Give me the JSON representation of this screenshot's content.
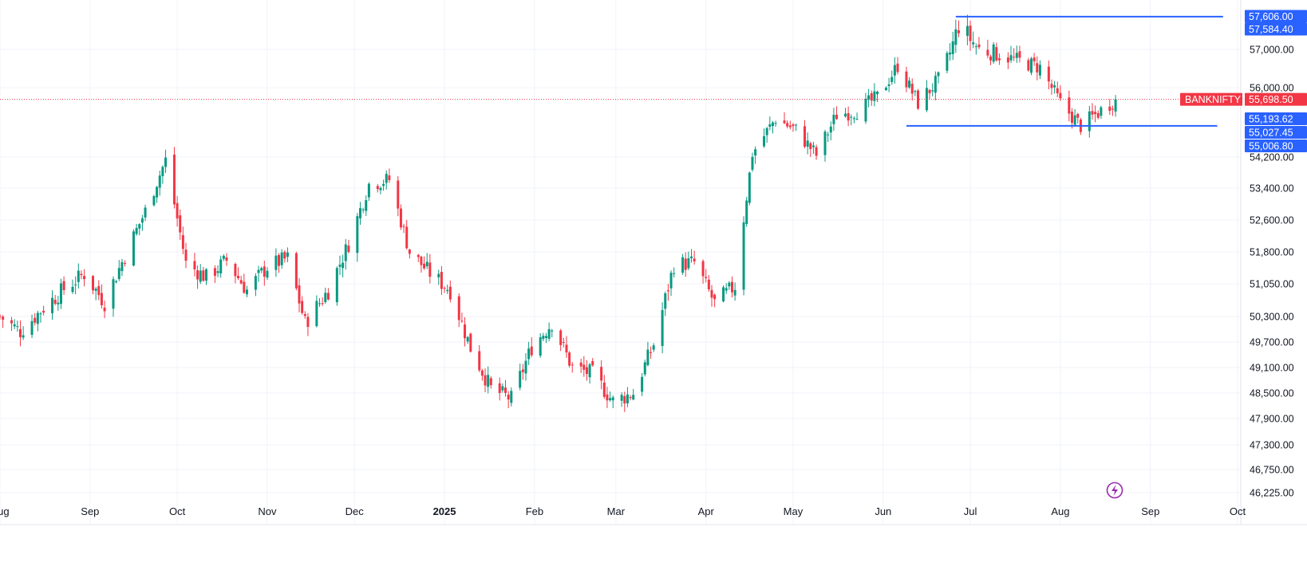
{
  "chart_data": {
    "type": "candlestick",
    "symbol": "BANKNIFTY",
    "title": "",
    "xlabel": "",
    "ylabel": "",
    "x_months": [
      {
        "label": "Aug",
        "bold": false
      },
      {
        "label": "Sep",
        "bold": false
      },
      {
        "label": "Oct",
        "bold": false
      },
      {
        "label": "Nov",
        "bold": false
      },
      {
        "label": "Dec",
        "bold": false
      },
      {
        "label": "2025",
        "bold": true
      },
      {
        "label": "Feb",
        "bold": false
      },
      {
        "label": "Mar",
        "bold": false
      },
      {
        "label": "Apr",
        "bold": false
      },
      {
        "label": "May",
        "bold": false
      },
      {
        "label": "Jun",
        "bold": false
      },
      {
        "label": "Jul",
        "bold": false
      },
      {
        "label": "Aug",
        "bold": false
      },
      {
        "label": "Sep",
        "bold": false
      },
      {
        "label": "Oct",
        "bold": false
      }
    ],
    "y_ticks": [
      {
        "value": 57000,
        "label": "57,000.00"
      },
      {
        "value": 56000,
        "label": "56,000.00"
      },
      {
        "value": 54200,
        "label": "54,200.00"
      },
      {
        "value": 53400,
        "label": "53,400.00"
      },
      {
        "value": 52600,
        "label": "52,600.00"
      },
      {
        "value": 51800,
        "label": "51,800.00"
      },
      {
        "value": 51050,
        "label": "51,050.00"
      },
      {
        "value": 50300,
        "label": "50,300.00"
      },
      {
        "value": 49700,
        "label": "49,700.00"
      },
      {
        "value": 49100,
        "label": "49,100.00"
      },
      {
        "value": 48500,
        "label": "48,500.00"
      },
      {
        "value": 47900,
        "label": "47,900.00"
      },
      {
        "value": 47300,
        "label": "47,300.00"
      },
      {
        "value": 46750,
        "label": "46,750.00"
      },
      {
        "value": 46225,
        "label": "46,225.00"
      }
    ],
    "last_price": {
      "symbol_label": "BANKNIFTY",
      "value": 55698.5,
      "label": "55,698.50",
      "color": "#f23645"
    },
    "price_labels": [
      {
        "value": 57606.0,
        "label": "57,606.00",
        "color": "#2962ff"
      },
      {
        "value": 57584.4,
        "label": "57,584.40",
        "color": "#2962ff"
      },
      {
        "value": 55193.62,
        "label": "55,193.62",
        "color": "#2962ff"
      },
      {
        "value": 55027.45,
        "label": "55,027.45",
        "color": "#2962ff"
      },
      {
        "value": 55006.8,
        "label": "55,006.80",
        "color": "#2962ff"
      }
    ],
    "trend_lines": [
      {
        "name": "resistance-line",
        "start_date": "2025-06-26",
        "end_date": "2025-09-26",
        "value": 57600
      },
      {
        "name": "support-line",
        "start_date": "2025-06-09",
        "end_date": "2025-09-24",
        "value": 55010
      }
    ],
    "price_series": [
      [
        "2024-08-01",
        50300
      ],
      [
        "2024-08-08",
        49950
      ],
      [
        "2024-08-16",
        50500
      ],
      [
        "2024-08-23",
        50930
      ],
      [
        "2024-08-30",
        51280
      ],
      [
        "2024-09-06",
        50620
      ],
      [
        "2024-09-13",
        51720
      ],
      [
        "2024-09-20",
        52820
      ],
      [
        "2024-09-27",
        54120
      ],
      [
        "2024-10-04",
        51530
      ],
      [
        "2024-10-11",
        51200
      ],
      [
        "2024-10-18",
        51600
      ],
      [
        "2024-10-25",
        50900
      ],
      [
        "2024-11-01",
        51450
      ],
      [
        "2024-11-08",
        51650
      ],
      [
        "2024-11-14",
        50150
      ],
      [
        "2024-11-22",
        50900
      ],
      [
        "2024-11-29",
        52000
      ],
      [
        "2024-12-06",
        53500
      ],
      [
        "2024-12-13",
        53620
      ],
      [
        "2024-12-20",
        51800
      ],
      [
        "2024-12-27",
        51300
      ],
      [
        "2025-01-03",
        50900
      ],
      [
        "2025-01-10",
        49560
      ],
      [
        "2025-01-17",
        48600
      ],
      [
        "2025-01-24",
        48360
      ],
      [
        "2025-01-31",
        49580
      ],
      [
        "2025-02-07",
        50150
      ],
      [
        "2025-02-14",
        49100
      ],
      [
        "2025-02-21",
        48950
      ],
      [
        "2025-02-28",
        48300
      ],
      [
        "2025-03-07",
        48500
      ],
      [
        "2025-03-14",
        49650
      ],
      [
        "2025-03-21",
        51500
      ],
      [
        "2025-03-28",
        51550
      ],
      [
        "2025-04-04",
        50600
      ],
      [
        "2025-04-11",
        51000
      ],
      [
        "2025-04-17",
        54300
      ],
      [
        "2025-04-25",
        55200
      ],
      [
        "2025-05-02",
        54900
      ],
      [
        "2025-05-09",
        54250
      ],
      [
        "2025-05-16",
        55300
      ],
      [
        "2025-05-23",
        55400
      ],
      [
        "2025-05-30",
        55750
      ],
      [
        "2025-06-06",
        56580
      ],
      [
        "2025-06-13",
        55600
      ],
      [
        "2025-06-20",
        56200
      ],
      [
        "2025-06-27",
        57450
      ],
      [
        "2025-07-04",
        57000
      ],
      [
        "2025-07-11",
        56850
      ],
      [
        "2025-07-18",
        56700
      ],
      [
        "2025-07-25",
        56530
      ],
      [
        "2025-08-01",
        55600
      ],
      [
        "2025-08-08",
        55010
      ],
      [
        "2025-08-14",
        55350
      ],
      [
        "2025-08-20",
        55698.5
      ]
    ],
    "grid": true
  },
  "ui": {
    "accent": "#2962ff",
    "up_color": "#089981",
    "down_color": "#f23645",
    "flash_icon_color": "#9c27b0",
    "flash_icon_name": "lightning-icon"
  }
}
